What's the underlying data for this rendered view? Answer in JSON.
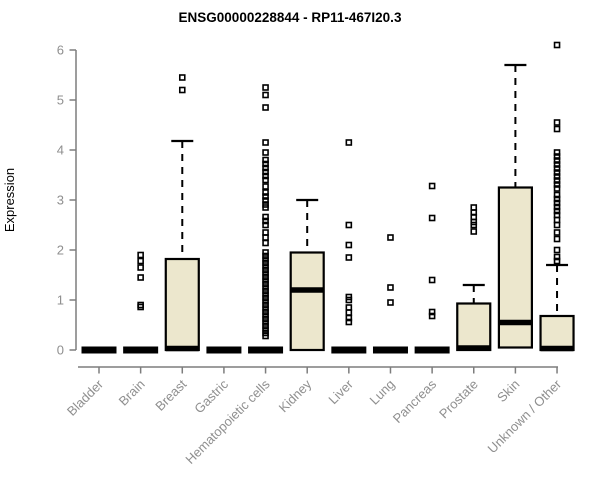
{
  "chart_data": {
    "type": "boxplot",
    "title": "ENSG00000228844 - RP11-467I20.3",
    "xlabel": "",
    "ylabel": "Expression",
    "ylim": [
      0,
      6.2
    ],
    "yticks": [
      0,
      1,
      2,
      3,
      4,
      5,
      6
    ],
    "grid": false,
    "legend": "none",
    "categories": [
      "Bladder",
      "Brain",
      "Breast",
      "Gastric",
      "Hematopoietic cells",
      "Kidney",
      "Liver",
      "Lung",
      "Pancreas",
      "Prostate",
      "Skin",
      "Unknown / Other"
    ],
    "series": [
      {
        "category": "Bladder",
        "q1": 0,
        "median": 0,
        "q3": 0,
        "whisker_low": 0,
        "whisker_high": 0,
        "outliers": []
      },
      {
        "category": "Brain",
        "q1": 0,
        "median": 0,
        "q3": 0,
        "whisker_low": 0,
        "whisker_high": 0,
        "outliers": [
          1.9,
          1.78,
          1.65,
          1.45,
          0.9,
          0.86
        ]
      },
      {
        "category": "Breast",
        "q1": 0,
        "median": 0.03,
        "q3": 1.82,
        "whisker_low": 0,
        "whisker_high": 4.18,
        "outliers": [
          5.45,
          5.2
        ]
      },
      {
        "category": "Gastric",
        "q1": 0,
        "median": 0,
        "q3": 0,
        "whisker_low": 0,
        "whisker_high": 0,
        "outliers": []
      },
      {
        "category": "Hematopoietic cells",
        "q1": 0,
        "median": 0,
        "q3": 0,
        "whisker_low": 0,
        "whisker_high": 0,
        "outliers": [
          5.25,
          5.1,
          4.85,
          4.15,
          3.95,
          3.8,
          3.72,
          3.64,
          3.56,
          3.48,
          3.4,
          3.27,
          3.15,
          3.07,
          2.99,
          2.91,
          2.85,
          2.66,
          2.58,
          2.5,
          2.35,
          2.25,
          2.14,
          1.95,
          1.88,
          1.81,
          1.74,
          1.67,
          1.6,
          1.53,
          1.46,
          1.39,
          1.32,
          1.25,
          1.18,
          1.11,
          1.04,
          0.97,
          0.9,
          0.83,
          0.76,
          0.69,
          0.62,
          0.55,
          0.48,
          0.41,
          0.34,
          0.28
        ]
      },
      {
        "category": "Kidney",
        "q1": 0,
        "median": 1.2,
        "q3": 1.95,
        "whisker_low": 0,
        "whisker_high": 3.0,
        "outliers": []
      },
      {
        "category": "Liver",
        "q1": 0,
        "median": 0,
        "q3": 0,
        "whisker_low": 0,
        "whisker_high": 0,
        "outliers": [
          4.15,
          2.5,
          2.1,
          1.85,
          1.06,
          1.0,
          0.85,
          0.75,
          0.64,
          0.56
        ]
      },
      {
        "category": "Lung",
        "q1": 0,
        "median": 0,
        "q3": 0,
        "whisker_low": 0,
        "whisker_high": 0,
        "outliers": [
          2.25,
          1.25,
          0.95
        ]
      },
      {
        "category": "Pancreas",
        "q1": 0,
        "median": 0,
        "q3": 0,
        "whisker_low": 0,
        "whisker_high": 0,
        "outliers": [
          3.28,
          2.64,
          1.4,
          0.76,
          0.68
        ]
      },
      {
        "category": "Prostate",
        "q1": 0,
        "median": 0.04,
        "q3": 0.93,
        "whisker_low": 0,
        "whisker_high": 1.3,
        "outliers": [
          2.85,
          2.75,
          2.66,
          2.56,
          2.5,
          2.37
        ]
      },
      {
        "category": "Skin",
        "q1": 0.05,
        "median": 0.55,
        "q3": 3.25,
        "whisker_low": 0.05,
        "whisker_high": 5.7,
        "outliers": []
      },
      {
        "category": "Unknown / Other",
        "q1": 0,
        "median": 0.03,
        "q3": 0.68,
        "whisker_low": 0,
        "whisker_high": 1.7,
        "outliers": [
          6.1,
          4.55,
          4.42,
          3.95,
          3.87,
          3.79,
          3.71,
          3.63,
          3.55,
          3.47,
          3.39,
          3.31,
          3.23,
          3.1,
          3.02,
          2.94,
          2.86,
          2.78,
          2.7,
          2.6,
          2.5,
          2.35,
          2.22,
          2.0,
          1.86,
          1.78
        ]
      }
    ]
  },
  "style": {
    "box_fill": "#ece7cd",
    "box_stroke": "#000000",
    "median_color": "#000000",
    "flat_bar_color": "#000000",
    "whisker_color": "#000000",
    "outlier_color": "#000000",
    "axis_color": "#7d7d7d",
    "tick_label_color": "#8f8f8f",
    "title_color": "#000000",
    "background": "#ffffff"
  }
}
